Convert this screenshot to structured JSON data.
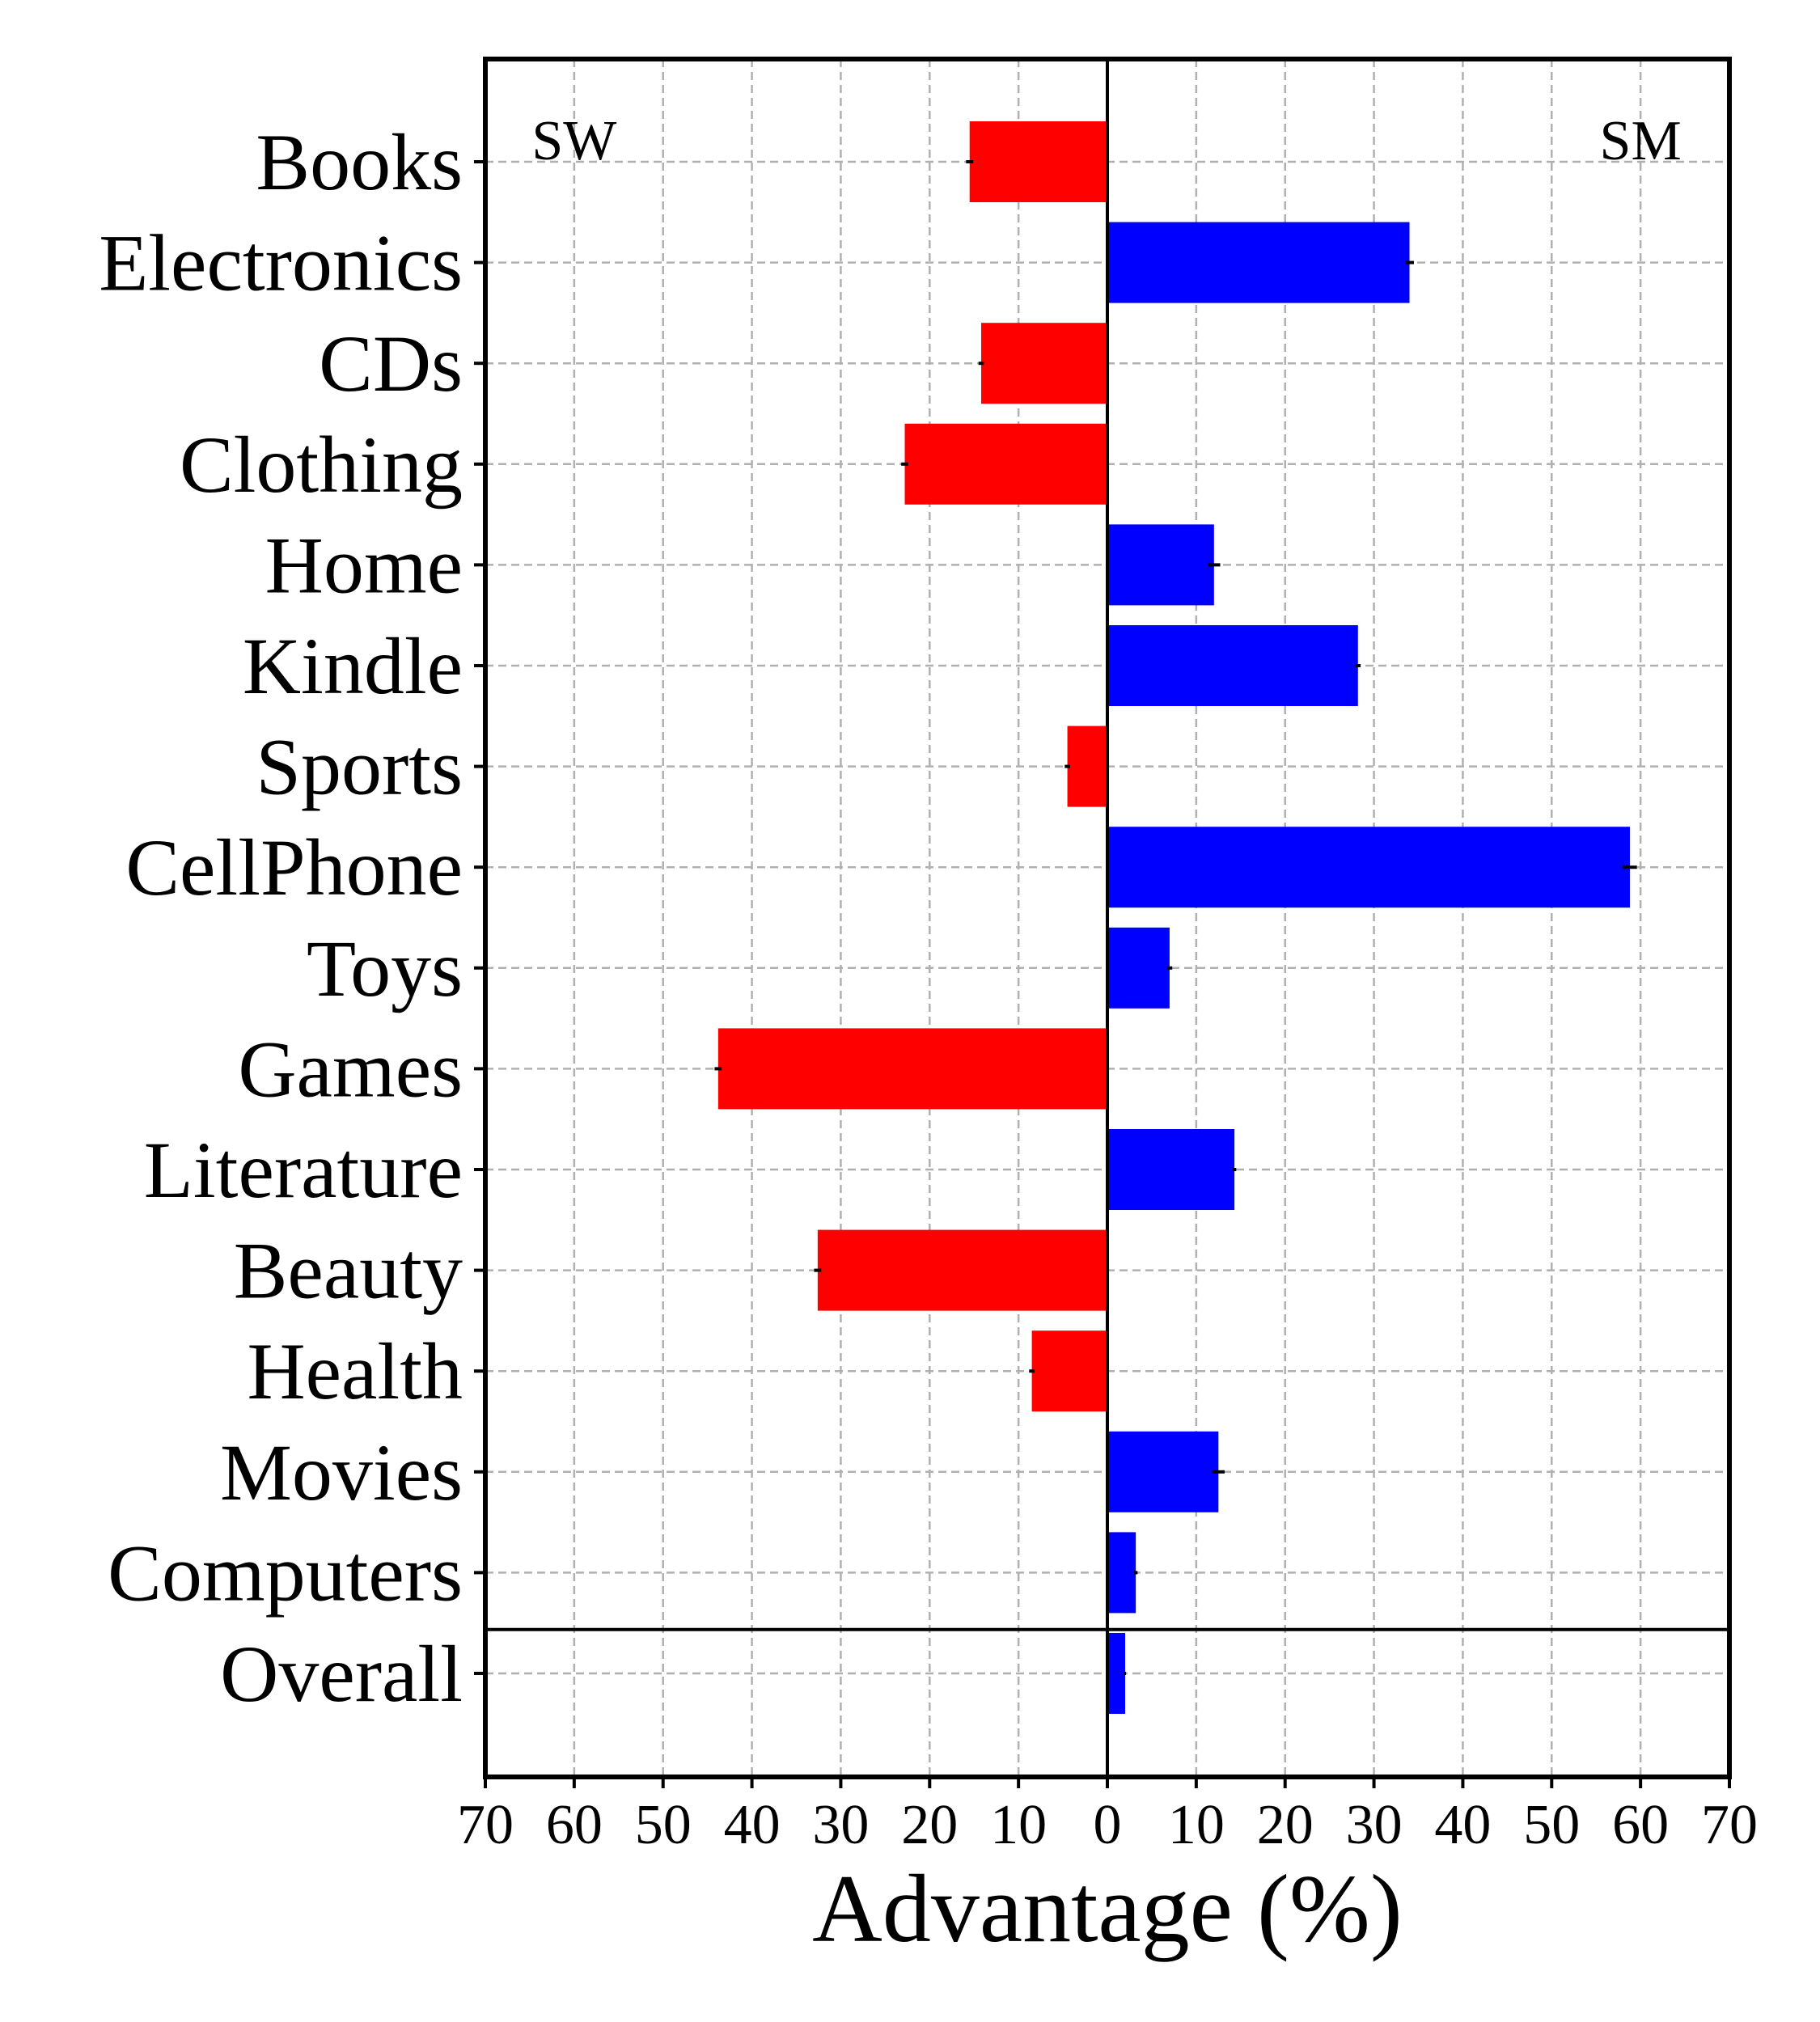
{
  "chart_data": {
    "type": "bar",
    "orientation": "horizontal",
    "categories": [
      "Books",
      "Electronics",
      "CDs",
      "Clothing",
      "Home",
      "Kindle",
      "Sports",
      "CellPhone",
      "Toys",
      "Games",
      "Literature",
      "Beauty",
      "Health",
      "Movies",
      "Computers",
      "Overall"
    ],
    "values": [
      -15.5,
      34.0,
      -14.2,
      -22.8,
      12.0,
      28.2,
      -4.5,
      58.8,
      7.0,
      -43.8,
      14.3,
      -32.6,
      -8.5,
      12.5,
      3.2,
      2.0
    ],
    "errors": [
      0.4,
      0.5,
      0.3,
      0.4,
      0.7,
      0.3,
      0.3,
      0.8,
      0.3,
      0.4,
      0.2,
      0.4,
      0.3,
      0.7,
      0.2,
      0.1
    ],
    "xlabel": "Advantage (%)",
    "ylabel": "",
    "xlim": [
      -70,
      70
    ],
    "xticks": [
      -70,
      -60,
      -50,
      -40,
      -30,
      -20,
      -10,
      0,
      10,
      20,
      30,
      40,
      50,
      60,
      70
    ],
    "xtick_labels": [
      "70",
      "60",
      "50",
      "40",
      "30",
      "20",
      "10",
      "0",
      "10",
      "20",
      "30",
      "40",
      "50",
      "60",
      "70"
    ],
    "left_label": "SW",
    "right_label": "SM",
    "negative_color": "#ff0000",
    "positive_color": "#0000ff",
    "highlight_category": "Overall",
    "highlight_color": "#bf00bf",
    "separator_after_index": 14,
    "grid": true
  }
}
